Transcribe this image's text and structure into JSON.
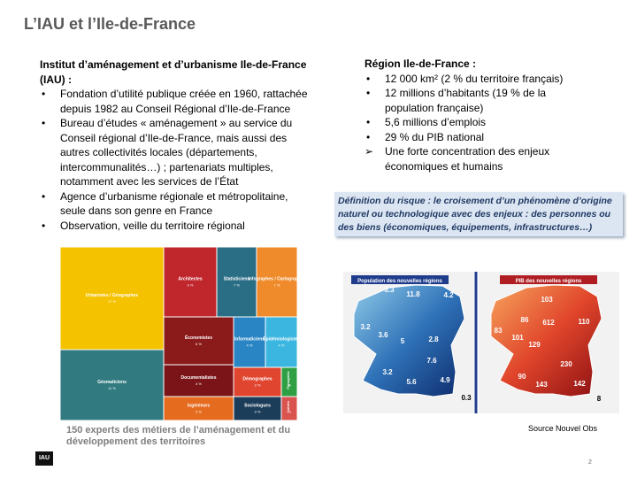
{
  "title": "L’IAU et l’Ile-de-France",
  "left": {
    "heading": "Institut d’aménagement et d’urbanisme Ile-de-France (IAU) :",
    "bullets": [
      "Fondation d’utilité publique créée en 1960, rattachée depuis 1982 au Conseil Régional d’Ile-de-France",
      "Bureau d’études « aménagement »  au service du Conseil régional d’Ile-de-France, mais aussi des autres collectivités locales (départements, intercommunalités…) ; partenariats multiples, notamment avec les services de l’État",
      "Agence d’urbanisme régionale et métropolitaine, seule dans son genre en France",
      "Observation, veille du territoire régional"
    ]
  },
  "right": {
    "heading": "Région Ile-de-France :",
    "bullets": [
      "12 000 km² (2 % du territoire français)",
      "12 millions d’habitants (19 % de la population française)",
      "5,6 millions d’emplois",
      "29 % du PIB national"
    ],
    "arrow_item": "Une forte concentration des enjeux économiques et humains"
  },
  "definition": "Définition du risque : le croisement d’un phénomène d’origine naturel ou technologique avec des enjeux : des personnes ou des biens (économiques, équipements, infrastructures…)",
  "treemap": {
    "tiles": [
      {
        "label": "Urbanistes / Géographes",
        "share": "17 %"
      },
      {
        "label": "Géomaticiens",
        "share": "11 %"
      },
      {
        "label": "Architectes",
        "share": "9 %"
      },
      {
        "label": "Statisticiens",
        "share": "7 %"
      },
      {
        "label": "Infographes / Cartographes",
        "share": "7 %"
      },
      {
        "label": "Économistes",
        "share": "6 %"
      },
      {
        "label": "Informaticiens",
        "share": "4 %"
      },
      {
        "label": "Épidémiologistes",
        "share": "4 %"
      },
      {
        "label": "Documentalistes",
        "share": "4 %"
      },
      {
        "label": "Démographes",
        "share": "3 %"
      },
      {
        "label": "Paysagistes",
        "share": "1 %"
      },
      {
        "label": "Ingénieurs",
        "share": "3 %"
      },
      {
        "label": "Sociologues",
        "share": "3 %"
      },
      {
        "label": "Juristes",
        "share": "1 %"
      }
    ]
  },
  "caption": "150 experts des métiers de l’aménagement et du développement des territoires",
  "maps": [
    {
      "title": "Population des nouvelles régions",
      "labels": [
        "3.3",
        "11.8",
        "4.2",
        "3.2",
        "3.6",
        "5",
        "2.8",
        "7.6",
        "3.2",
        "5.6",
        "4.9",
        "0.3"
      ]
    },
    {
      "title": "PIB des nouvelles régions",
      "labels": [
        "103",
        "86",
        "612",
        "110",
        "83",
        "101",
        "129",
        "90",
        "230",
        "143",
        "142",
        "8"
      ]
    }
  ],
  "source": "Source Nouvel Obs",
  "logo": "IAU",
  "page_number": "2"
}
